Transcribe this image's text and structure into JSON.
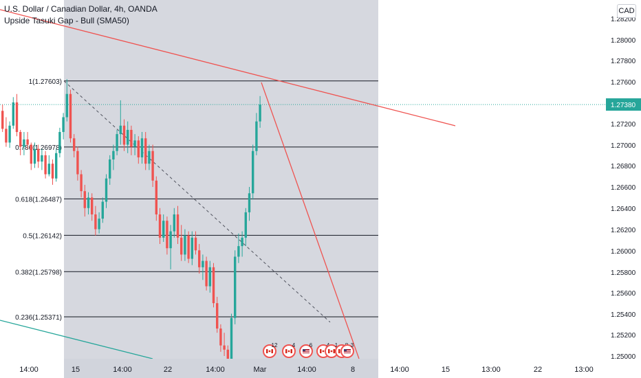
{
  "header": {
    "symbol_title": "U.S. Dollar / Canadian Dollar, 4h, OANDA",
    "indicator_title": "Upside Tasuki Gap - Bull (SMA50)"
  },
  "currency_label": "CAD",
  "colors": {
    "up_candle": "#26a69a",
    "down_candle": "#ef5350",
    "trendline": "#ef5350",
    "lower_line": "#26a69a",
    "highlight_bg": "#d1d4dc",
    "fib_line": "#131722",
    "price_badge": "#26a69a"
  },
  "chart_data": {
    "type": "candlestick",
    "symbol": "U.S. Dollar / Canadian Dollar, 4h, OANDA",
    "x_tick_labels": [
      "14:00",
      "15",
      "14:00",
      "22",
      "14:00",
      "Mar",
      "14:00",
      "8",
      "14:00",
      "15",
      "13:00",
      "22",
      "13:00"
    ],
    "y_tick_labels": [
      "1.28200",
      "1.28000",
      "1.27800",
      "1.27600",
      "1.27200",
      "1.27000",
      "1.26800",
      "1.26600",
      "1.26400",
      "1.26200",
      "1.26000",
      "1.25800",
      "1.25600",
      "1.25400",
      "1.25200",
      "1.25000"
    ],
    "y_ticks": [
      1.282,
      1.28,
      1.278,
      1.276,
      1.272,
      1.27,
      1.268,
      1.266,
      1.264,
      1.262,
      1.26,
      1.258,
      1.256,
      1.254,
      1.252,
      1.25
    ],
    "ylim": [
      1.2496,
      1.2838
    ],
    "current_price": {
      "label": "1.27380",
      "value": 1.2738
    },
    "fib_levels": [
      {
        "label": "1(1.27603)",
        "value": 1.27603
      },
      {
        "label": "0.786(1.26978)",
        "value": 1.26978
      },
      {
        "label": "0.618(1.26487)",
        "value": 1.26487
      },
      {
        "label": "0.5(1.26142)",
        "value": 1.26142
      },
      {
        "label": "0.382(1.25798)",
        "value": 1.25798
      },
      {
        "label": "0.236(1.25371)",
        "value": 1.25371
      }
    ],
    "events": [
      {
        "flag": "ca",
        "count": "12"
      },
      {
        "flag": "ca",
        "count": "4"
      },
      {
        "flag": "us",
        "count": "6"
      },
      {
        "flag": "ca",
        "count": "4"
      },
      {
        "flag": "ca",
        "count": "1"
      },
      {
        "flag": "ca",
        "count": "8"
      },
      {
        "flag": "us",
        "count": "3"
      }
    ],
    "candles": [
      [
        1.2732,
        1.2738,
        1.2712,
        1.2715
      ],
      [
        1.2715,
        1.2726,
        1.2698,
        1.2702
      ],
      [
        1.2702,
        1.2722,
        1.2697,
        1.2718
      ],
      [
        1.2718,
        1.2745,
        1.2715,
        1.274
      ],
      [
        1.274,
        1.2748,
        1.2708,
        1.2712
      ],
      [
        1.2712,
        1.2714,
        1.269,
        1.2698
      ],
      [
        1.2698,
        1.2712,
        1.269,
        1.2705
      ],
      [
        1.2705,
        1.2712,
        1.2696,
        1.27
      ],
      [
        1.27,
        1.2702,
        1.2676,
        1.2682
      ],
      [
        1.2682,
        1.2702,
        1.2678,
        1.2696
      ],
      [
        1.2696,
        1.27,
        1.2678,
        1.2684
      ],
      [
        1.2684,
        1.2696,
        1.2676,
        1.269
      ],
      [
        1.269,
        1.2694,
        1.2668,
        1.2672
      ],
      [
        1.2672,
        1.269,
        1.267,
        1.2682
      ],
      [
        1.2682,
        1.2686,
        1.2662,
        1.2668
      ],
      [
        1.2668,
        1.2696,
        1.2665,
        1.2692
      ],
      [
        1.2692,
        1.2716,
        1.2688,
        1.2712
      ],
      [
        1.2712,
        1.273,
        1.2705,
        1.2726
      ],
      [
        1.2726,
        1.2762,
        1.2722,
        1.2748
      ],
      [
        1.2748,
        1.2752,
        1.2702,
        1.2706
      ],
      [
        1.2706,
        1.271,
        1.2688,
        1.2694
      ],
      [
        1.2694,
        1.2698,
        1.2666,
        1.2672
      ],
      [
        1.2672,
        1.2676,
        1.265,
        1.2656
      ],
      [
        1.2656,
        1.2662,
        1.2632,
        1.264
      ],
      [
        1.264,
        1.2655,
        1.2634,
        1.265
      ],
      [
        1.265,
        1.2654,
        1.2628,
        1.2634
      ],
      [
        1.2634,
        1.2642,
        1.2614,
        1.262
      ],
      [
        1.262,
        1.2636,
        1.2616,
        1.263
      ],
      [
        1.263,
        1.265,
        1.2626,
        1.2646
      ],
      [
        1.2646,
        1.2672,
        1.264,
        1.2668
      ],
      [
        1.2668,
        1.269,
        1.2662,
        1.2686
      ],
      [
        1.2686,
        1.27,
        1.2676,
        1.2694
      ],
      [
        1.2694,
        1.2714,
        1.269,
        1.271
      ],
      [
        1.271,
        1.2742,
        1.27,
        1.2718
      ],
      [
        1.2718,
        1.2724,
        1.2694,
        1.27
      ],
      [
        1.27,
        1.2722,
        1.2692,
        1.2714
      ],
      [
        1.2714,
        1.2718,
        1.269,
        1.2698
      ],
      [
        1.2698,
        1.271,
        1.269,
        1.2704
      ],
      [
        1.2704,
        1.2708,
        1.2682,
        1.2688
      ],
      [
        1.2688,
        1.2712,
        1.2682,
        1.2706
      ],
      [
        1.2706,
        1.2712,
        1.2676,
        1.2682
      ],
      [
        1.2682,
        1.27,
        1.2676,
        1.2694
      ],
      [
        1.2694,
        1.27,
        1.266,
        1.2666
      ],
      [
        1.2666,
        1.267,
        1.2628,
        1.2634
      ],
      [
        1.2634,
        1.264,
        1.2606,
        1.2612
      ],
      [
        1.2612,
        1.2634,
        1.2608,
        1.2628
      ],
      [
        1.2628,
        1.2632,
        1.2596,
        1.2602
      ],
      [
        1.2602,
        1.2624,
        1.2582,
        1.2618
      ],
      [
        1.2618,
        1.264,
        1.2612,
        1.2634
      ],
      [
        1.2634,
        1.2642,
        1.2606,
        1.2612
      ],
      [
        1.2612,
        1.2624,
        1.259,
        1.2596
      ],
      [
        1.2596,
        1.262,
        1.259,
        1.2614
      ],
      [
        1.2614,
        1.2618,
        1.2588,
        1.2592
      ],
      [
        1.2592,
        1.2618,
        1.2586,
        1.2612
      ],
      [
        1.2612,
        1.2618,
        1.2596,
        1.26
      ],
      [
        1.26,
        1.2606,
        1.2578,
        1.2584
      ],
      [
        1.2584,
        1.2596,
        1.2572,
        1.259
      ],
      [
        1.259,
        1.2594,
        1.2562,
        1.2566
      ],
      [
        1.2566,
        1.259,
        1.256,
        1.2584
      ],
      [
        1.2584,
        1.2588,
        1.2546,
        1.255
      ],
      [
        1.255,
        1.2556,
        1.2522,
        1.2526
      ],
      [
        1.2526,
        1.253,
        1.2504,
        1.251
      ],
      [
        1.251,
        1.2522,
        1.25,
        1.2506
      ],
      [
        1.2506,
        1.251,
        1.249,
        1.2496
      ],
      [
        1.2496,
        1.254,
        1.2494,
        1.2536
      ],
      [
        1.2536,
        1.26,
        1.253,
        1.2594
      ],
      [
        1.2594,
        1.2616,
        1.2588,
        1.2604
      ],
      [
        1.2604,
        1.2618,
        1.2594,
        1.2612
      ],
      [
        1.2612,
        1.264,
        1.2604,
        1.2636
      ],
      [
        1.2636,
        1.266,
        1.2628,
        1.2654
      ],
      [
        1.2654,
        1.27,
        1.2648,
        1.2694
      ],
      [
        1.2694,
        1.273,
        1.269,
        1.2722
      ],
      [
        1.2722,
        1.2746,
        1.2716,
        1.2738
      ]
    ]
  }
}
